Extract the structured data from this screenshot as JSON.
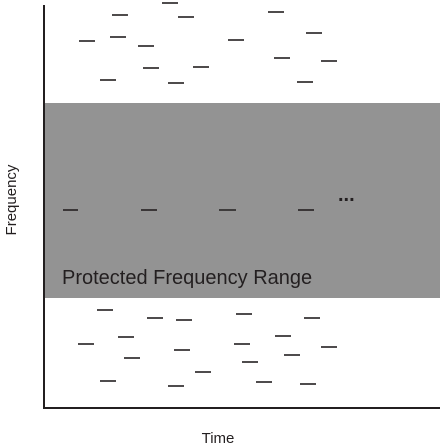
{
  "labels": {
    "y_axis": "Frequency",
    "x_axis": "Time",
    "band": "Protected Frequency Range",
    "ellipsis": "..."
  }
}
